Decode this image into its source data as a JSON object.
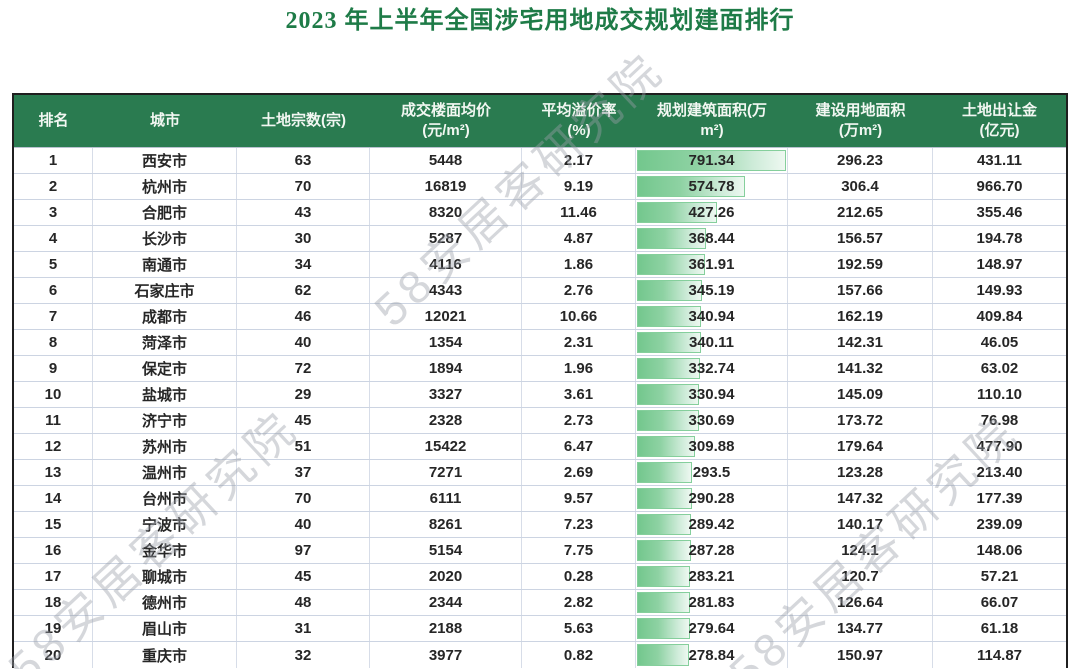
{
  "title": "2023 年上半年全国涉宅用地成交规划建面排行",
  "title_color": "#1e7b47",
  "header_bg_color": "#2a7b50",
  "databar_color": "#73c78d",
  "watermark": {
    "text": "58安居客研究院"
  },
  "table": {
    "headers": [
      [
        "排名"
      ],
      [
        "城市"
      ],
      [
        "土地宗数(宗)"
      ],
      [
        "成交楼面均价",
        "(元/m²)"
      ],
      [
        "平均溢价率",
        "(%)"
      ],
      [
        "规划建筑面积(万",
        "m²)"
      ],
      [
        "建设用地面积",
        "(万m²)"
      ],
      [
        "土地出让金",
        "(亿元)"
      ]
    ],
    "databar_max": 791.34,
    "rows": [
      {
        "rank": "1",
        "city": "西安市",
        "parcels": "63",
        "floor_price": "5448",
        "premium": "2.17",
        "planned_area": "791.34",
        "land_area": "296.23",
        "land_fee": "431.11"
      },
      {
        "rank": "2",
        "city": "杭州市",
        "parcels": "70",
        "floor_price": "16819",
        "premium": "9.19",
        "planned_area": "574.78",
        "land_area": "306.4",
        "land_fee": "966.70"
      },
      {
        "rank": "3",
        "city": "合肥市",
        "parcels": "43",
        "floor_price": "8320",
        "premium": "11.46",
        "planned_area": "427.26",
        "land_area": "212.65",
        "land_fee": "355.46"
      },
      {
        "rank": "4",
        "city": "长沙市",
        "parcels": "30",
        "floor_price": "5287",
        "premium": "4.87",
        "planned_area": "368.44",
        "land_area": "156.57",
        "land_fee": "194.78"
      },
      {
        "rank": "5",
        "city": "南通市",
        "parcels": "34",
        "floor_price": "4116",
        "premium": "1.86",
        "planned_area": "361.91",
        "land_area": "192.59",
        "land_fee": "148.97"
      },
      {
        "rank": "6",
        "city": "石家庄市",
        "parcels": "62",
        "floor_price": "4343",
        "premium": "2.76",
        "planned_area": "345.19",
        "land_area": "157.66",
        "land_fee": "149.93"
      },
      {
        "rank": "7",
        "city": "成都市",
        "parcels": "46",
        "floor_price": "12021",
        "premium": "10.66",
        "planned_area": "340.94",
        "land_area": "162.19",
        "land_fee": "409.84"
      },
      {
        "rank": "8",
        "city": "菏泽市",
        "parcels": "40",
        "floor_price": "1354",
        "premium": "2.31",
        "planned_area": "340.11",
        "land_area": "142.31",
        "land_fee": "46.05"
      },
      {
        "rank": "9",
        "city": "保定市",
        "parcels": "72",
        "floor_price": "1894",
        "premium": "1.96",
        "planned_area": "332.74",
        "land_area": "141.32",
        "land_fee": "63.02"
      },
      {
        "rank": "10",
        "city": "盐城市",
        "parcels": "29",
        "floor_price": "3327",
        "premium": "3.61",
        "planned_area": "330.94",
        "land_area": "145.09",
        "land_fee": "110.10"
      },
      {
        "rank": "11",
        "city": "济宁市",
        "parcels": "45",
        "floor_price": "2328",
        "premium": "2.73",
        "planned_area": "330.69",
        "land_area": "173.72",
        "land_fee": "76.98"
      },
      {
        "rank": "12",
        "city": "苏州市",
        "parcels": "51",
        "floor_price": "15422",
        "premium": "6.47",
        "planned_area": "309.88",
        "land_area": "179.64",
        "land_fee": "477.90"
      },
      {
        "rank": "13",
        "city": "温州市",
        "parcels": "37",
        "floor_price": "7271",
        "premium": "2.69",
        "planned_area": "293.5",
        "land_area": "123.28",
        "land_fee": "213.40"
      },
      {
        "rank": "14",
        "city": "台州市",
        "parcels": "70",
        "floor_price": "6111",
        "premium": "9.57",
        "planned_area": "290.28",
        "land_area": "147.32",
        "land_fee": "177.39"
      },
      {
        "rank": "15",
        "city": "宁波市",
        "parcels": "40",
        "floor_price": "8261",
        "premium": "7.23",
        "planned_area": "289.42",
        "land_area": "140.17",
        "land_fee": "239.09"
      },
      {
        "rank": "16",
        "city": "金华市",
        "parcels": "97",
        "floor_price": "5154",
        "premium": "7.75",
        "planned_area": "287.28",
        "land_area": "124.1",
        "land_fee": "148.06"
      },
      {
        "rank": "17",
        "city": "聊城市",
        "parcels": "45",
        "floor_price": "2020",
        "premium": "0.28",
        "planned_area": "283.21",
        "land_area": "120.7",
        "land_fee": "57.21"
      },
      {
        "rank": "18",
        "city": "德州市",
        "parcels": "48",
        "floor_price": "2344",
        "premium": "2.82",
        "planned_area": "281.83",
        "land_area": "126.64",
        "land_fee": "66.07"
      },
      {
        "rank": "19",
        "city": "眉山市",
        "parcels": "31",
        "floor_price": "2188",
        "premium": "5.63",
        "planned_area": "279.64",
        "land_area": "134.77",
        "land_fee": "61.18"
      },
      {
        "rank": "20",
        "city": "重庆市",
        "parcels": "32",
        "floor_price": "3977",
        "premium": "0.82",
        "planned_area": "278.84",
        "land_area": "150.97",
        "land_fee": "114.87"
      }
    ]
  },
  "chart_data": {
    "type": "table",
    "title": "2023 年上半年全国涉宅用地成交规划建面排行",
    "columns": [
      "排名",
      "城市",
      "土地宗数(宗)",
      "成交楼面均价(元/m²)",
      "平均溢价率(%)",
      "规划建筑面积(万m²)",
      "建设用地面积(万m²)",
      "土地出让金(亿元)"
    ],
    "databar": {
      "column": "规划建筑面积(万m²)",
      "min": 0,
      "max": 791.34,
      "color": "#73c78d"
    },
    "rows": [
      [
        1,
        "西安市",
        63,
        5448,
        2.17,
        791.34,
        296.23,
        431.11
      ],
      [
        2,
        "杭州市",
        70,
        16819,
        9.19,
        574.78,
        306.4,
        966.7
      ],
      [
        3,
        "合肥市",
        43,
        8320,
        11.46,
        427.26,
        212.65,
        355.46
      ],
      [
        4,
        "长沙市",
        30,
        5287,
        4.87,
        368.44,
        156.57,
        194.78
      ],
      [
        5,
        "南通市",
        34,
        4116,
        1.86,
        361.91,
        192.59,
        148.97
      ],
      [
        6,
        "石家庄市",
        62,
        4343,
        2.76,
        345.19,
        157.66,
        149.93
      ],
      [
        7,
        "成都市",
        46,
        12021,
        10.66,
        340.94,
        162.19,
        409.84
      ],
      [
        8,
        "菏泽市",
        40,
        1354,
        2.31,
        340.11,
        142.31,
        46.05
      ],
      [
        9,
        "保定市",
        72,
        1894,
        1.96,
        332.74,
        141.32,
        63.02
      ],
      [
        10,
        "盐城市",
        29,
        3327,
        3.61,
        330.94,
        145.09,
        110.1
      ],
      [
        11,
        "济宁市",
        45,
        2328,
        2.73,
        330.69,
        173.72,
        76.98
      ],
      [
        12,
        "苏州市",
        51,
        15422,
        6.47,
        309.88,
        179.64,
        477.9
      ],
      [
        13,
        "温州市",
        37,
        7271,
        2.69,
        293.5,
        123.28,
        213.4
      ],
      [
        14,
        "台州市",
        70,
        6111,
        9.57,
        290.28,
        147.32,
        177.39
      ],
      [
        15,
        "宁波市",
        40,
        8261,
        7.23,
        289.42,
        140.17,
        239.09
      ],
      [
        16,
        "金华市",
        97,
        5154,
        7.75,
        287.28,
        124.1,
        148.06
      ],
      [
        17,
        "聊城市",
        45,
        2020,
        0.28,
        283.21,
        120.7,
        57.21
      ],
      [
        18,
        "德州市",
        48,
        2344,
        2.82,
        281.83,
        126.64,
        66.07
      ],
      [
        19,
        "眉山市",
        31,
        2188,
        5.63,
        279.64,
        134.77,
        61.18
      ],
      [
        20,
        "重庆市",
        32,
        3977,
        0.82,
        278.84,
        150.97,
        114.87
      ]
    ]
  }
}
